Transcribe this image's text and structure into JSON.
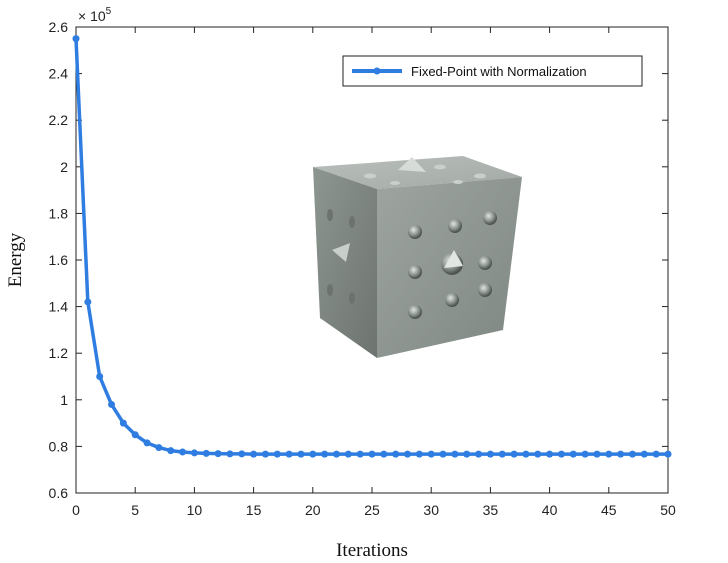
{
  "chart_data": {
    "type": "line",
    "title": "",
    "xlabel": "Iterations",
    "ylabel": "Energy",
    "xlim": [
      0,
      50
    ],
    "ylim": [
      0.6,
      2.6
    ],
    "y_scale_multiplier_label": "× 10",
    "y_scale_exponent": "5",
    "x_ticks": [
      "0",
      "5",
      "10",
      "15",
      "20",
      "25",
      "30",
      "35",
      "40",
      "45",
      "50"
    ],
    "y_ticks": [
      "0.6",
      "0.8",
      "1",
      "1.2",
      "1.4",
      "1.6",
      "1.8",
      "2",
      "2.2",
      "2.4",
      "2.6"
    ],
    "grid": false,
    "legend_position": "top-right",
    "series": [
      {
        "name": "Fixed-Point with Normalization",
        "color": "#2f7de1",
        "x": [
          0,
          1,
          2,
          3,
          4,
          5,
          6,
          7,
          8,
          9,
          10,
          11,
          12,
          13,
          14,
          15,
          16,
          17,
          18,
          19,
          20,
          21,
          22,
          23,
          24,
          25,
          26,
          27,
          28,
          29,
          30,
          31,
          32,
          33,
          34,
          35,
          36,
          37,
          38,
          39,
          40,
          41,
          42,
          43,
          44,
          45,
          46,
          47,
          48,
          49,
          50
        ],
        "y": [
          2.55,
          1.42,
          1.1,
          0.98,
          0.9,
          0.85,
          0.815,
          0.795,
          0.782,
          0.776,
          0.772,
          0.77,
          0.769,
          0.768,
          0.768,
          0.767,
          0.767,
          0.767,
          0.767,
          0.767,
          0.767,
          0.767,
          0.767,
          0.767,
          0.767,
          0.767,
          0.767,
          0.767,
          0.767,
          0.767,
          0.767,
          0.767,
          0.767,
          0.767,
          0.767,
          0.767,
          0.767,
          0.767,
          0.767,
          0.767,
          0.767,
          0.767,
          0.767,
          0.767,
          0.767,
          0.767,
          0.767,
          0.767,
          0.767,
          0.767,
          0.767
        ]
      }
    ],
    "inset_image": "gray-cube-with-surface-bumps"
  }
}
